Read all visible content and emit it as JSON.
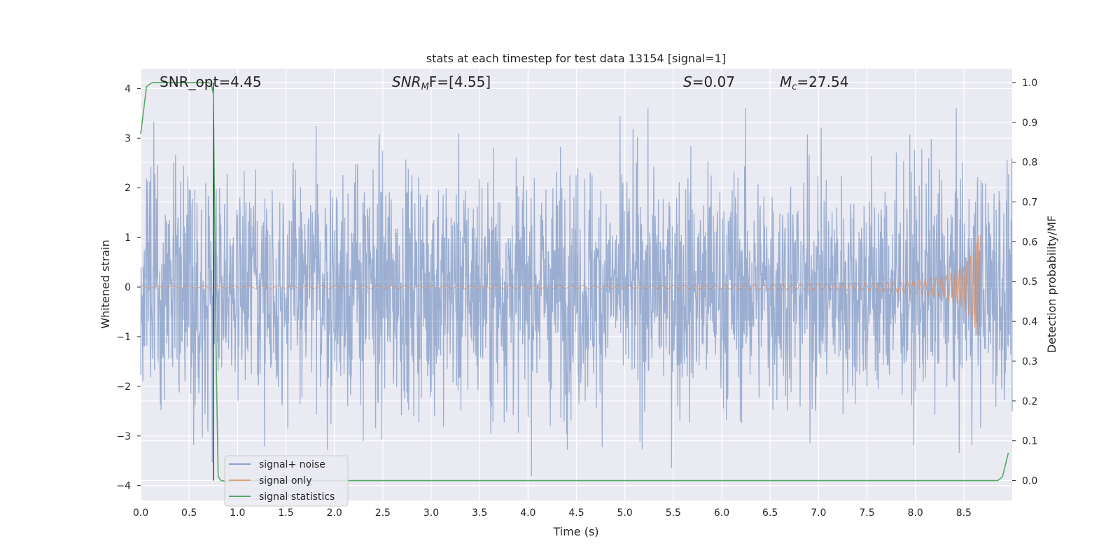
{
  "chart_data": {
    "type": "line",
    "title": "stats at each timestep for test data 13154 [signal=1]",
    "xlabel": "Time (s)",
    "ylabel_left": "Whitened strain",
    "ylabel_right": "Detection probability/MF",
    "xlim": [
      0.0,
      9.0
    ],
    "ylim_left": [
      -4.3,
      4.4
    ],
    "ylim_right": [
      -0.05,
      1.035
    ],
    "x_ticks": [
      "0.0",
      "0.5",
      "1.0",
      "1.5",
      "2.0",
      "2.5",
      "3.0",
      "3.5",
      "4.0",
      "4.5",
      "5.0",
      "5.5",
      "6.0",
      "6.5",
      "7.0",
      "7.5",
      "8.0",
      "8.5"
    ],
    "y_ticks_left": [
      "4",
      "3",
      "2",
      "1",
      "0",
      "−1",
      "−2",
      "−3",
      "−4"
    ],
    "y_ticks_right": [
      "1.0",
      "0.9",
      "0.8",
      "0.7",
      "0.6",
      "0.5",
      "0.4",
      "0.3",
      "0.2",
      "0.1",
      "0.0"
    ],
    "grid": true,
    "annotations": {
      "snr_opt": "SNR_opt=4.45",
      "snr_mf_pre": "SNR",
      "snr_mf_sub": "M",
      "snr_mf_post": "F=[4.55]",
      "s_pre": "S",
      "s_post": "=0.07",
      "mc_pre": "M",
      "mc_sub": "c",
      "mc_post": "=27.54"
    },
    "legend": {
      "position": "lower-left",
      "entries": [
        "signal+ noise",
        "signal only",
        "signal statistics"
      ]
    },
    "series": [
      {
        "name": "signal+ noise",
        "axis": "left",
        "color": "#4c72b0",
        "description_of_shape": "noise band",
        "x_range": [
          0.0,
          9.0
        ],
        "typical_amplitude": 1.4,
        "max": 3.6,
        "min": -3.9
      },
      {
        "name": "signal only",
        "axis": "left",
        "color": "#dd8452",
        "x_range": [
          0.0,
          8.67
        ],
        "envelope": {
          "x": [
            0.0,
            5.0,
            6.5,
            7.5,
            8.0,
            8.3,
            8.5,
            8.6,
            8.67
          ],
          "amp": [
            0.02,
            0.03,
            0.05,
            0.08,
            0.13,
            0.22,
            0.42,
            0.75,
            1.15
          ]
        }
      },
      {
        "name": "signal statistics",
        "axis": "right",
        "color": "#55a868",
        "x": [
          0.0,
          0.06,
          0.12,
          0.2,
          0.5,
          0.7,
          0.73,
          0.75,
          0.78,
          0.8,
          0.83,
          0.9,
          1.0,
          2.0,
          5.0,
          8.0,
          8.85,
          8.9,
          8.96
        ],
        "y": [
          0.87,
          0.99,
          1.0,
          1.0,
          1.0,
          1.0,
          0.995,
          0.97,
          0.3,
          0.01,
          0.0,
          -0.002,
          0.0,
          0.0,
          0.0,
          0.0,
          0.0,
          0.01,
          0.07
        ]
      }
    ],
    "vertical_line": {
      "x": 0.75,
      "color": "#404040"
    }
  }
}
